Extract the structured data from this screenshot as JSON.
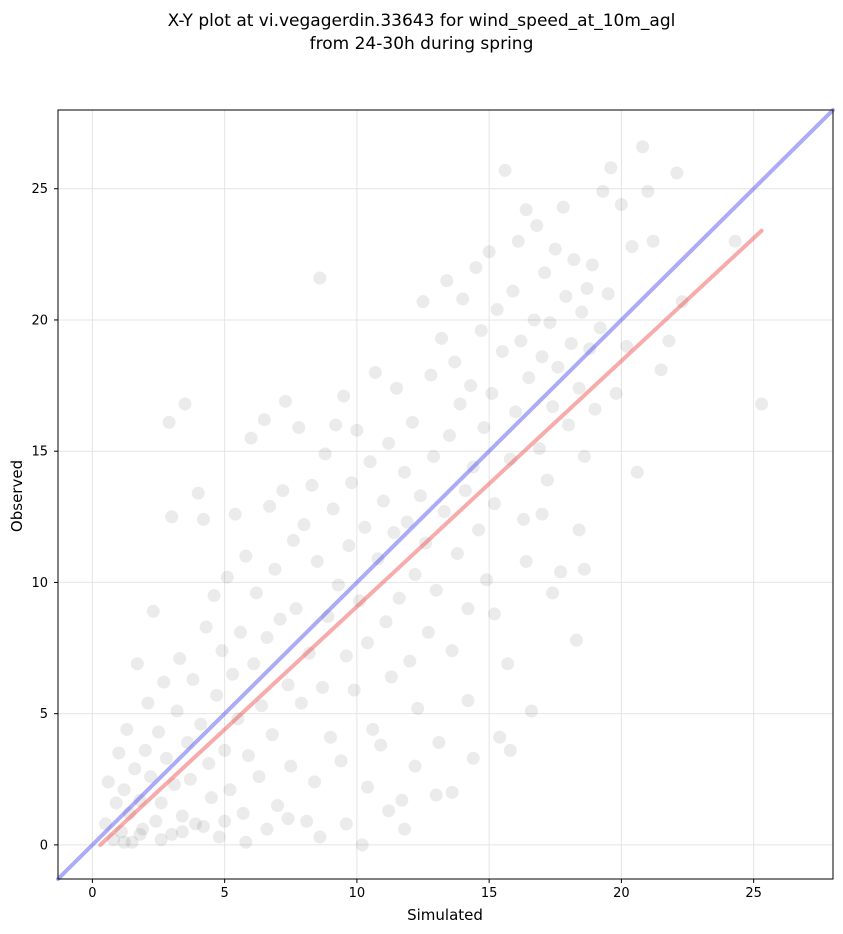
{
  "chart_data": {
    "type": "scatter",
    "title": [
      "X-Y plot at vi.vegagerdin.33643 for wind_speed_at_10m_agl",
      "from 24-30h during spring"
    ],
    "xlabel": "Simulated",
    "ylabel": "Observed",
    "xlim": [
      -1.3,
      28.0
    ],
    "ylim": [
      -1.3,
      28.0
    ],
    "xticks": [
      0,
      5,
      10,
      15,
      20,
      25
    ],
    "yticks": [
      0,
      5,
      10,
      15,
      20,
      25
    ],
    "grid": true,
    "point_color": "#000000",
    "point_opacity": 0.08,
    "series": [
      {
        "values": [
          [
            0.5,
            0.8
          ],
          [
            0.6,
            2.4
          ],
          [
            0.8,
            0.2
          ],
          [
            0.9,
            1.6
          ],
          [
            1.0,
            3.5
          ],
          [
            1.1,
            0.5
          ],
          [
            1.2,
            2.1
          ],
          [
            1.3,
            4.4
          ],
          [
            1.4,
            1.2
          ],
          [
            1.5,
            0.1
          ],
          [
            1.6,
            2.9
          ],
          [
            1.7,
            6.9
          ],
          [
            1.8,
            1.7
          ],
          [
            1.9,
            0.6
          ],
          [
            2.0,
            3.6
          ],
          [
            2.1,
            5.4
          ],
          [
            2.2,
            2.6
          ],
          [
            2.3,
            8.9
          ],
          [
            2.4,
            0.9
          ],
          [
            2.5,
            4.3
          ],
          [
            2.6,
            1.6
          ],
          [
            2.7,
            6.2
          ],
          [
            2.8,
            3.3
          ],
          [
            2.9,
            16.1
          ],
          [
            3.0,
            0.4
          ],
          [
            3.0,
            12.5
          ],
          [
            3.1,
            2.3
          ],
          [
            3.2,
            5.1
          ],
          [
            3.3,
            7.1
          ],
          [
            3.4,
            1.1
          ],
          [
            3.5,
            16.8
          ],
          [
            3.6,
            3.9
          ],
          [
            3.7,
            2.5
          ],
          [
            3.8,
            6.3
          ],
          [
            3.9,
            0.8
          ],
          [
            4.0,
            13.4
          ],
          [
            4.1,
            4.6
          ],
          [
            4.2,
            12.4
          ],
          [
            4.3,
            8.3
          ],
          [
            4.4,
            3.1
          ],
          [
            4.5,
            1.8
          ],
          [
            4.6,
            9.5
          ],
          [
            4.7,
            5.7
          ],
          [
            4.8,
            0.3
          ],
          [
            4.9,
            7.4
          ],
          [
            5.0,
            3.6
          ],
          [
            5.1,
            10.2
          ],
          [
            5.2,
            2.1
          ],
          [
            5.3,
            6.5
          ],
          [
            5.4,
            12.6
          ],
          [
            5.5,
            4.8
          ],
          [
            5.6,
            8.1
          ],
          [
            5.7,
            1.2
          ],
          [
            5.8,
            11.0
          ],
          [
            5.9,
            3.4
          ],
          [
            6.0,
            15.5
          ],
          [
            6.1,
            6.9
          ],
          [
            6.2,
            9.6
          ],
          [
            6.3,
            2.6
          ],
          [
            6.4,
            5.3
          ],
          [
            6.5,
            16.2
          ],
          [
            6.6,
            7.9
          ],
          [
            6.7,
            12.9
          ],
          [
            6.8,
            4.2
          ],
          [
            6.9,
            10.5
          ],
          [
            7.0,
            1.5
          ],
          [
            7.1,
            8.6
          ],
          [
            7.2,
            13.5
          ],
          [
            7.3,
            16.9
          ],
          [
            7.4,
            6.1
          ],
          [
            7.5,
            3.0
          ],
          [
            7.6,
            11.6
          ],
          [
            7.7,
            9.0
          ],
          [
            7.8,
            15.9
          ],
          [
            7.9,
            5.4
          ],
          [
            8.0,
            12.2
          ],
          [
            8.1,
            0.9
          ],
          [
            8.2,
            7.3
          ],
          [
            8.3,
            13.7
          ],
          [
            8.4,
            2.4
          ],
          [
            8.5,
            10.8
          ],
          [
            8.6,
            21.6
          ],
          [
            8.7,
            6.0
          ],
          [
            8.8,
            14.9
          ],
          [
            8.9,
            8.7
          ],
          [
            9.0,
            4.1
          ],
          [
            9.1,
            12.8
          ],
          [
            9.2,
            16.0
          ],
          [
            9.3,
            9.9
          ],
          [
            9.4,
            3.2
          ],
          [
            9.5,
            17.1
          ],
          [
            9.6,
            7.2
          ],
          [
            9.7,
            11.4
          ],
          [
            9.8,
            13.8
          ],
          [
            9.9,
            5.9
          ],
          [
            10.0,
            15.8
          ],
          [
            10.1,
            9.3
          ],
          [
            10.2,
            0.0
          ],
          [
            10.3,
            12.1
          ],
          [
            10.4,
            7.7
          ],
          [
            10.5,
            14.6
          ],
          [
            10.6,
            4.4
          ],
          [
            10.7,
            18.0
          ],
          [
            10.8,
            10.9
          ],
          [
            10.9,
            3.8
          ],
          [
            11.0,
            13.1
          ],
          [
            11.1,
            8.5
          ],
          [
            11.2,
            15.3
          ],
          [
            11.3,
            6.4
          ],
          [
            11.4,
            11.9
          ],
          [
            11.5,
            17.4
          ],
          [
            11.6,
            9.4
          ],
          [
            11.7,
            1.7
          ],
          [
            11.8,
            14.2
          ],
          [
            11.9,
            12.3
          ],
          [
            12.0,
            7.0
          ],
          [
            12.1,
            16.1
          ],
          [
            12.2,
            10.3
          ],
          [
            12.3,
            5.2
          ],
          [
            12.4,
            13.3
          ],
          [
            12.5,
            20.7
          ],
          [
            12.6,
            11.5
          ],
          [
            12.7,
            8.1
          ],
          [
            12.8,
            17.9
          ],
          [
            12.9,
            14.8
          ],
          [
            13.0,
            9.7
          ],
          [
            13.1,
            3.9
          ],
          [
            13.2,
            19.3
          ],
          [
            13.3,
            12.7
          ],
          [
            13.4,
            21.5
          ],
          [
            13.5,
            15.6
          ],
          [
            13.6,
            7.4
          ],
          [
            13.7,
            18.4
          ],
          [
            13.8,
            11.1
          ],
          [
            13.9,
            16.8
          ],
          [
            14.0,
            20.8
          ],
          [
            14.1,
            13.5
          ],
          [
            14.2,
            9.0
          ],
          [
            14.3,
            17.5
          ],
          [
            14.4,
            14.4
          ],
          [
            14.5,
            22.0
          ],
          [
            14.6,
            12.0
          ],
          [
            14.7,
            19.6
          ],
          [
            14.8,
            15.9
          ],
          [
            14.9,
            10.1
          ],
          [
            15.0,
            22.6
          ],
          [
            15.1,
            17.2
          ],
          [
            15.2,
            13.0
          ],
          [
            15.3,
            20.4
          ],
          [
            15.4,
            4.1
          ],
          [
            15.5,
            18.8
          ],
          [
            15.6,
            25.7
          ],
          [
            15.7,
            6.9
          ],
          [
            15.8,
            14.7
          ],
          [
            15.9,
            21.1
          ],
          [
            16.0,
            16.5
          ],
          [
            16.1,
            23.0
          ],
          [
            16.2,
            19.2
          ],
          [
            16.3,
            12.4
          ],
          [
            16.4,
            24.2
          ],
          [
            16.5,
            17.8
          ],
          [
            16.6,
            5.1
          ],
          [
            16.7,
            20.0
          ],
          [
            16.8,
            23.6
          ],
          [
            16.9,
            15.1
          ],
          [
            17.0,
            18.6
          ],
          [
            17.1,
            21.8
          ],
          [
            17.2,
            13.9
          ],
          [
            17.3,
            19.9
          ],
          [
            17.4,
            16.7
          ],
          [
            17.5,
            22.7
          ],
          [
            17.6,
            18.2
          ],
          [
            17.7,
            10.4
          ],
          [
            17.8,
            24.3
          ],
          [
            17.9,
            20.9
          ],
          [
            18.0,
            16.0
          ],
          [
            18.1,
            19.1
          ],
          [
            18.2,
            22.3
          ],
          [
            18.3,
            7.8
          ],
          [
            18.4,
            17.4
          ],
          [
            18.5,
            20.3
          ],
          [
            18.6,
            14.8
          ],
          [
            18.7,
            21.2
          ],
          [
            18.8,
            18.9
          ],
          [
            18.9,
            22.1
          ],
          [
            19.0,
            16.6
          ],
          [
            19.2,
            19.7
          ],
          [
            19.3,
            24.9
          ],
          [
            19.5,
            21.0
          ],
          [
            19.6,
            25.8
          ],
          [
            19.8,
            17.2
          ],
          [
            20.0,
            24.4
          ],
          [
            20.2,
            19.0
          ],
          [
            20.4,
            22.8
          ],
          [
            20.6,
            14.2
          ],
          [
            20.8,
            26.6
          ],
          [
            21.0,
            24.9
          ],
          [
            21.2,
            23.0
          ],
          [
            21.5,
            18.1
          ],
          [
            21.8,
            19.2
          ],
          [
            22.1,
            25.6
          ],
          [
            22.3,
            20.7
          ],
          [
            24.3,
            23.0
          ],
          [
            25.3,
            16.8
          ],
          [
            11.8,
            0.6
          ],
          [
            13.0,
            1.9
          ],
          [
            14.4,
            3.3
          ],
          [
            15.8,
            3.6
          ],
          [
            17.4,
            9.6
          ],
          [
            18.6,
            10.5
          ],
          [
            1.2,
            0.1
          ],
          [
            1.8,
            0.4
          ],
          [
            2.6,
            0.2
          ],
          [
            3.4,
            0.5
          ],
          [
            4.2,
            0.7
          ],
          [
            5.0,
            0.9
          ],
          [
            5.8,
            0.1
          ],
          [
            6.6,
            0.6
          ],
          [
            7.4,
            1.0
          ],
          [
            8.6,
            0.3
          ],
          [
            9.6,
            0.8
          ],
          [
            10.4,
            2.2
          ],
          [
            11.2,
            1.3
          ],
          [
            12.2,
            3.0
          ],
          [
            13.6,
            2.0
          ],
          [
            14.2,
            5.5
          ],
          [
            15.2,
            8.8
          ],
          [
            16.4,
            10.8
          ],
          [
            17.0,
            12.6
          ],
          [
            18.4,
            12.0
          ]
        ]
      }
    ],
    "reference_lines": [
      {
        "kind": "one_to_one",
        "color": "#4444ee",
        "opacity": 0.45,
        "x": [
          -1.3,
          28.0
        ],
        "y": [
          -1.3,
          28.0
        ]
      },
      {
        "kind": "fit",
        "color": "#ee4444",
        "opacity": 0.45,
        "x": [
          0.3,
          25.3
        ],
        "y": [
          0.0,
          23.4
        ]
      }
    ]
  }
}
